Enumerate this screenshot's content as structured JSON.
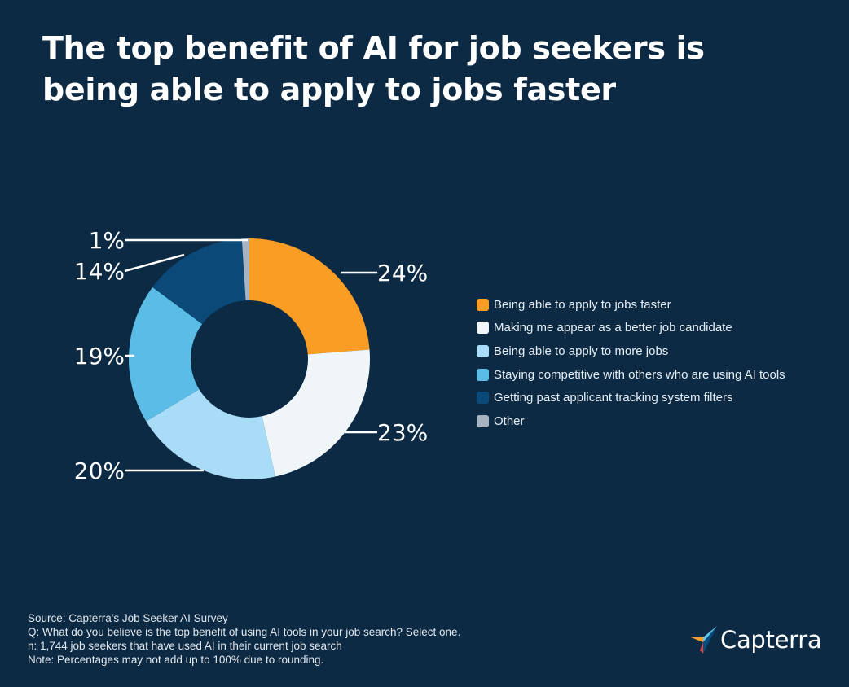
{
  "title": {
    "line1": "The top benefit of AI for job seekers is",
    "line2": "being able to apply to jobs faster"
  },
  "chart_data": {
    "type": "pie",
    "donut": true,
    "categories": [
      "Being able to apply to jobs faster",
      "Making me appear as a better job candidate",
      "Being able to apply to more jobs",
      "Staying competitive with others who are using AI tools",
      "Getting past applicant tracking system filters",
      "Other"
    ],
    "values": [
      24,
      23,
      20,
      19,
      14,
      1
    ],
    "value_labels": [
      "24%",
      "23%",
      "20%",
      "19%",
      "14%",
      "1%"
    ],
    "colors": [
      "#f99d25",
      "#f0f6f8",
      "#a8dcf7",
      "#5bbde6",
      "#0b4a78",
      "#a7b3c1"
    ],
    "legend_position": "right"
  },
  "footer": {
    "source": "Source: Capterra's Job Seeker AI Survey",
    "question": "Q: What do you believe is the top benefit of using AI tools in your job search? Select one.",
    "n": "n: 1,744 job seekers that have used AI in their current job search",
    "note": "Note: Percentages may not add up to 100% due to rounding."
  },
  "brand": {
    "name": "Capterra",
    "colors": [
      "#ff9d28",
      "#68c5ed",
      "#044d80",
      "#e54747"
    ]
  }
}
